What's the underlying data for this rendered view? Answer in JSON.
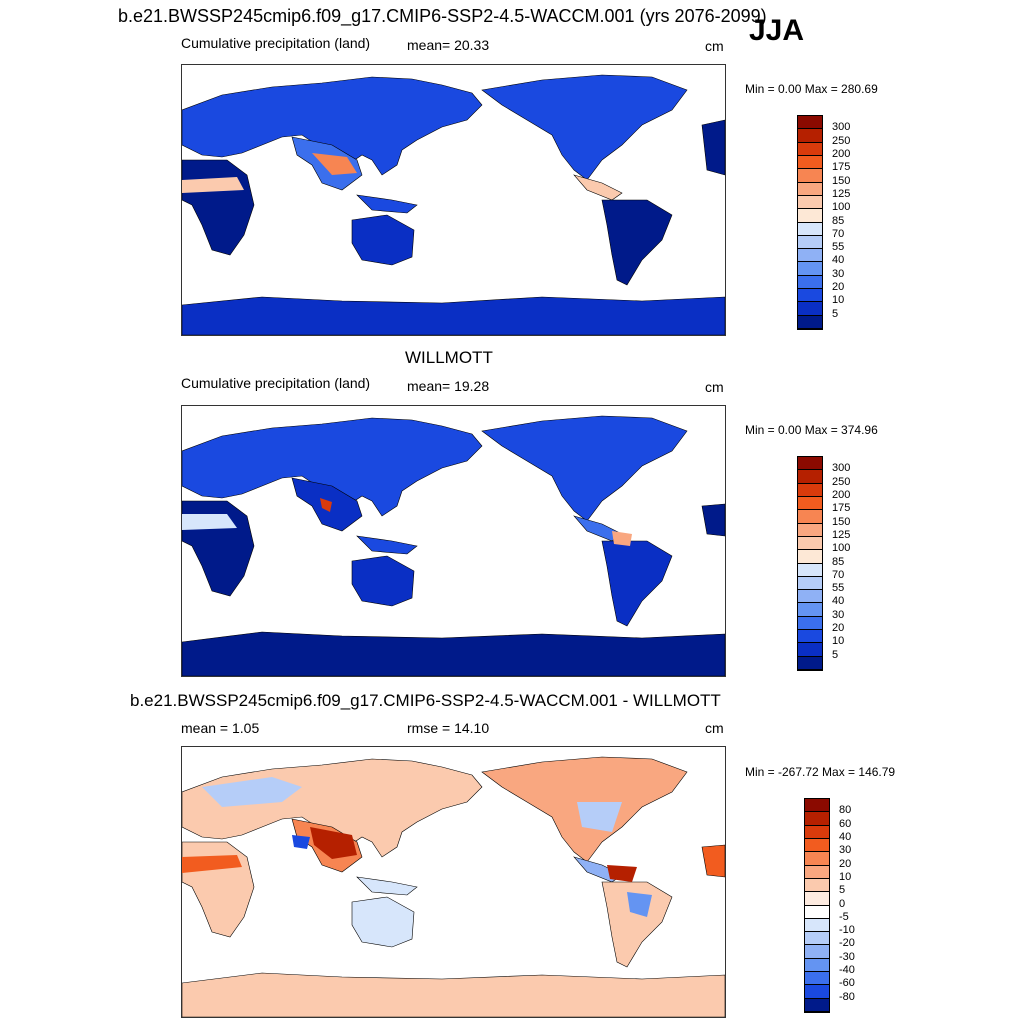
{
  "header": {
    "top_title": "b.e21.BWSSP245cmip6.f09_g17.CMIP6-SSP2-4.5-WACCM.001 (yrs 2076-2099)",
    "season": "JJA"
  },
  "panels": [
    {
      "title": "",
      "left_label": "Cumulative precipitation (land)",
      "center_label": "mean=  20.33",
      "units": "cm",
      "minmax": "Min =    0.00 Max = 280.69",
      "colorbar": {
        "labels": [
          "300",
          "250",
          "200",
          "175",
          "150",
          "125",
          "100",
          "85",
          "70",
          "55",
          "40",
          "30",
          "20",
          "10",
          "5"
        ],
        "colors": [
          "#8b0a00",
          "#b52000",
          "#d93b0c",
          "#f25c1f",
          "#f78552",
          "#f9a780",
          "#fbcaae",
          "#fde8d6",
          "#d7e6fb",
          "#b5cdf8",
          "#8fb1f5",
          "#6494f2",
          "#3b6fed",
          "#1a49e0",
          "#0a2fc4",
          "#001a8a"
        ]
      }
    },
    {
      "title": "WILLMOTT",
      "left_label": "Cumulative precipitation (land)",
      "center_label": "mean=  19.28",
      "units": "cm",
      "minmax": "Min =    0.00 Max = 374.96",
      "colorbar": {
        "labels": [
          "300",
          "250",
          "200",
          "175",
          "150",
          "125",
          "100",
          "85",
          "70",
          "55",
          "40",
          "30",
          "20",
          "10",
          "5"
        ],
        "colors": [
          "#8b0a00",
          "#b52000",
          "#d93b0c",
          "#f25c1f",
          "#f78552",
          "#f9a780",
          "#fbcaae",
          "#fde8d6",
          "#d7e6fb",
          "#b5cdf8",
          "#8fb1f5",
          "#6494f2",
          "#3b6fed",
          "#1a49e0",
          "#0a2fc4",
          "#001a8a"
        ]
      }
    },
    {
      "title": "b.e21.BWSSP245cmip6.f09_g17.CMIP6-SSP2-4.5-WACCM.001 - WILLMOTT",
      "left_label": "mean =   1.05",
      "center_label": "rmse =  14.10",
      "units": "cm",
      "minmax": "Min = -267.72 Max = 146.79",
      "colorbar": {
        "labels": [
          "80",
          "60",
          "40",
          "30",
          "20",
          "10",
          "5",
          "0",
          "-5",
          "-10",
          "-20",
          "-30",
          "-40",
          "-60",
          "-80"
        ],
        "colors": [
          "#8b0a00",
          "#b52000",
          "#d93b0c",
          "#f25c1f",
          "#f78552",
          "#f9a780",
          "#fbcaae",
          "#fdebe0",
          "#ffffff",
          "#d7e6fb",
          "#b5cdf8",
          "#8fb1f5",
          "#6494f2",
          "#3b6fed",
          "#1a49e0",
          "#001a8a"
        ]
      }
    }
  ]
}
